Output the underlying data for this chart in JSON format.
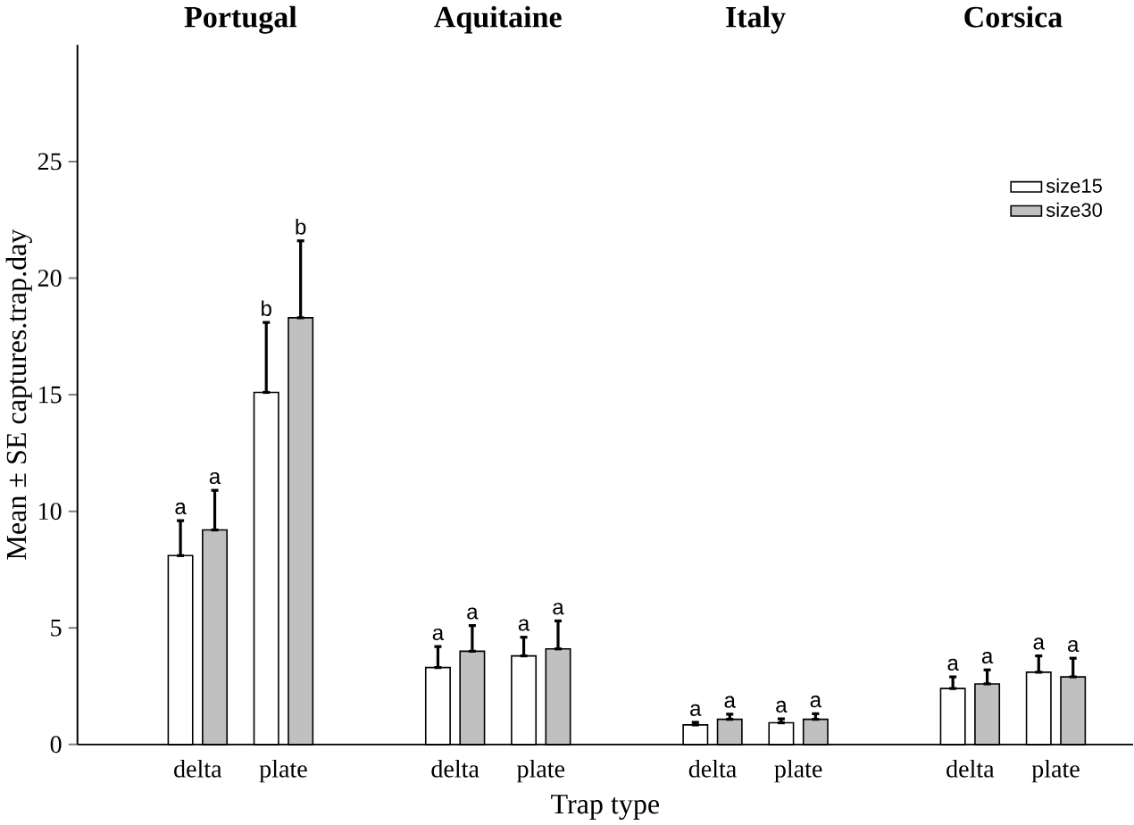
{
  "chart_data": {
    "type": "bar",
    "xlabel": "Trap type",
    "ylabel": "Mean ± SE captures.trap.day",
    "categories": [
      "delta",
      "plate",
      "delta",
      "plate",
      "delta",
      "plate",
      "delta",
      "plate"
    ],
    "series": [
      {
        "name": "size15",
        "color": "#ffffff",
        "values": [
          8.1,
          15.1,
          3.3,
          3.8,
          0.84,
          0.93,
          2.4,
          3.1
        ],
        "errors": [
          [
            8.1,
            9.6
          ],
          [
            15.1,
            18.1
          ],
          [
            3.3,
            4.2
          ],
          [
            3.8,
            4.6
          ],
          [
            0.84,
            0.95
          ],
          [
            0.93,
            1.1
          ],
          [
            2.4,
            2.9
          ],
          [
            3.1,
            3.8
          ]
        ]
      },
      {
        "name": "size30",
        "color": "#c0c0c0",
        "values": [
          9.2,
          18.3,
          4.0,
          4.1,
          1.08,
          1.08,
          2.6,
          2.9
        ],
        "errors": [
          [
            9.2,
            10.9
          ],
          [
            18.3,
            21.6
          ],
          [
            4.0,
            5.1
          ],
          [
            4.1,
            5.3
          ],
          [
            1.08,
            1.3
          ],
          [
            1.08,
            1.32
          ],
          [
            2.6,
            3.2
          ],
          [
            2.9,
            3.7
          ]
        ]
      }
    ],
    "ylim": [
      0,
      30
    ],
    "yticks": [
      0,
      5,
      10,
      15,
      20,
      25
    ],
    "legend": "top right",
    "grid": false,
    "annotations": [
      "Portugal",
      "Aquitaine",
      "Italy",
      "Corsica",
      "a",
      "a",
      "b",
      "b",
      "a",
      "a",
      "a",
      "a",
      "a",
      "a",
      "a",
      "a",
      "a",
      "a",
      "a",
      "a"
    ]
  }
}
